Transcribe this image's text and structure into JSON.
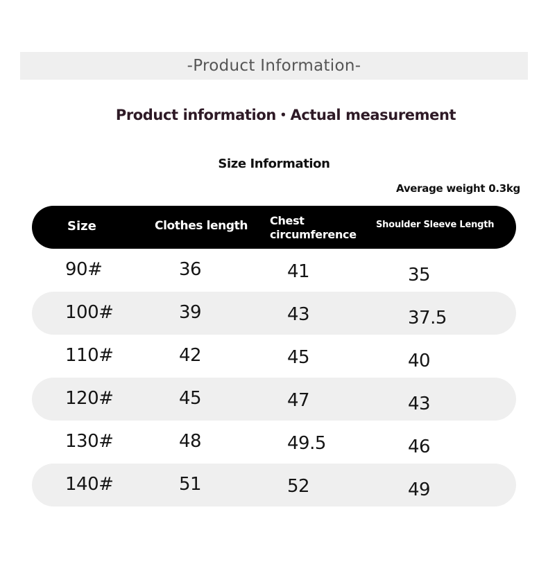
{
  "banner": {
    "title": "-Product  Information-"
  },
  "subtitle": "Product information・Actual measurement",
  "size_information_title": "Size Information",
  "average_weight": "Average weight 0.3kg",
  "table": {
    "headers": {
      "size": "Size",
      "clothes_length": "Clothes length",
      "chest_line1": "Chest",
      "chest_line2": "circumference",
      "shoulder_sleeve": "Shoulder Sleeve Length"
    },
    "rows": [
      {
        "size": "90#",
        "clothes_length": "36",
        "chest": "41",
        "shoulder_sleeve": "35"
      },
      {
        "size": "100#",
        "clothes_length": "39",
        "chest": "43",
        "shoulder_sleeve": "37.5"
      },
      {
        "size": "110#",
        "clothes_length": "42",
        "chest": "45",
        "shoulder_sleeve": "40"
      },
      {
        "size": "120#",
        "clothes_length": "45",
        "chest": "47",
        "shoulder_sleeve": "43"
      },
      {
        "size": "130#",
        "clothes_length": "48",
        "chest": "49.5",
        "shoulder_sleeve": "46"
      },
      {
        "size": "140#",
        "clothes_length": "51",
        "chest": "52",
        "shoulder_sleeve": "49"
      }
    ]
  }
}
